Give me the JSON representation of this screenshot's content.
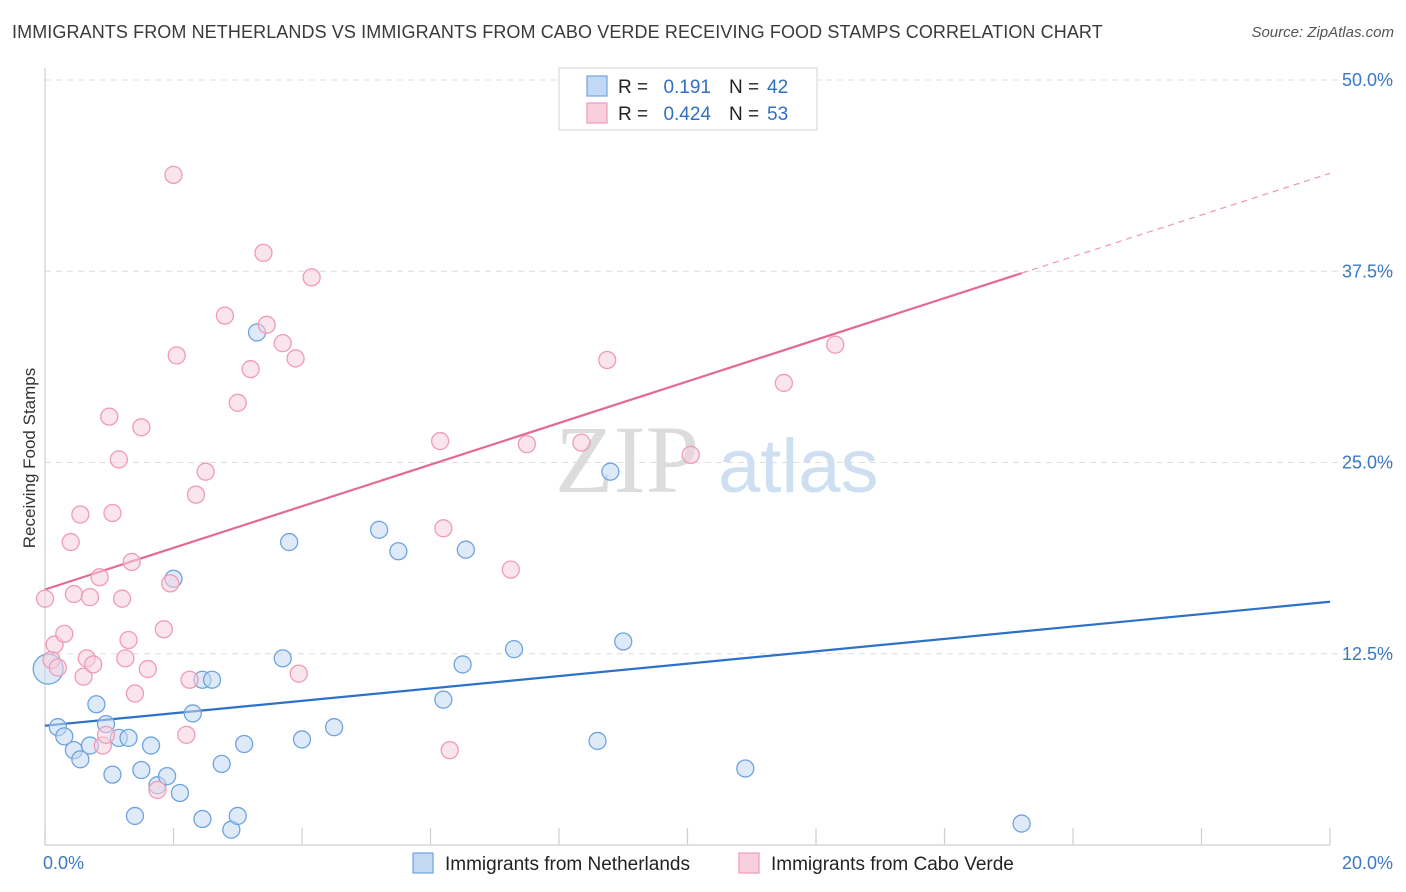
{
  "title": "IMMIGRANTS FROM NETHERLANDS VS IMMIGRANTS FROM CABO VERDE RECEIVING FOOD STAMPS CORRELATION CHART",
  "source": "Source: ZipAtlas.com",
  "watermark": {
    "zip": "ZIP",
    "atlas": "atlas"
  },
  "chart_data": {
    "type": "scatter",
    "title": "IMMIGRANTS FROM NETHERLANDS VS IMMIGRANTS FROM CABO VERDE RECEIVING FOOD STAMPS CORRELATION CHART",
    "xlabel": "",
    "ylabel": "Receiving Food Stamps",
    "xlim": [
      0,
      20
    ],
    "ylim": [
      0,
      50
    ],
    "x_tick_labels": [
      "0.0%",
      "20.0%"
    ],
    "y_ticks": [
      12.5,
      25.0,
      37.5,
      50.0
    ],
    "y_tick_labels": [
      "12.5%",
      "25.0%",
      "37.5%",
      "50.0%"
    ],
    "grid": true,
    "legend_placement": "top-center",
    "legend": {
      "r_label": "R =",
      "n_label": "N =",
      "entries": [
        {
          "r": "0.191",
          "n": "42"
        },
        {
          "r": "0.424",
          "n": "53"
        }
      ]
    },
    "series": [
      {
        "name": "Immigrants from Netherlands",
        "color": "#6fa3e0",
        "fill": "#c3d8f3",
        "trend_color": "#2d72c9",
        "trend": {
          "x0": 0,
          "y0": 7.8,
          "x1": 20,
          "y1": 15.9,
          "solid_until": 20
        },
        "points": [
          [
            0.05,
            11.5
          ],
          [
            0.2,
            7.7
          ],
          [
            0.3,
            7.1
          ],
          [
            0.45,
            6.2
          ],
          [
            0.55,
            5.6
          ],
          [
            0.7,
            6.5
          ],
          [
            0.8,
            9.2
          ],
          [
            0.95,
            7.9
          ],
          [
            1.05,
            4.6
          ],
          [
            1.15,
            7.0
          ],
          [
            1.3,
            7.0
          ],
          [
            1.5,
            4.9
          ],
          [
            1.65,
            6.5
          ],
          [
            1.75,
            3.9
          ],
          [
            1.9,
            4.5
          ],
          [
            2.0,
            17.4
          ],
          [
            2.1,
            3.4
          ],
          [
            2.3,
            8.6
          ],
          [
            2.45,
            10.8
          ],
          [
            2.6,
            10.8
          ],
          [
            2.75,
            5.3
          ],
          [
            2.9,
            1.0
          ],
          [
            3.0,
            1.9
          ],
          [
            3.1,
            6.6
          ],
          [
            3.3,
            33.5
          ],
          [
            3.7,
            12.2
          ],
          [
            3.8,
            19.8
          ],
          [
            4.0,
            6.9
          ],
          [
            4.5,
            7.7
          ],
          [
            5.2,
            20.6
          ],
          [
            5.5,
            19.2
          ],
          [
            6.2,
            9.5
          ],
          [
            6.5,
            11.8
          ],
          [
            6.55,
            19.3
          ],
          [
            7.3,
            12.8
          ],
          [
            8.6,
            6.8
          ],
          [
            8.8,
            24.4
          ],
          [
            9.0,
            13.3
          ],
          [
            10.9,
            5.0
          ],
          [
            15.2,
            1.4
          ],
          [
            1.4,
            1.9
          ],
          [
            2.45,
            1.7
          ]
        ]
      },
      {
        "name": "Immigrants from Cabo Verde",
        "color": "#f09bb5",
        "fill": "#f8cfdc",
        "trend_color": "#e36a93",
        "trend": {
          "x0": 0,
          "y0": 16.7,
          "x1": 20,
          "y1": 43.9,
          "solid_until": 15.2
        },
        "points": [
          [
            0.0,
            16.1
          ],
          [
            0.1,
            12.1
          ],
          [
            0.15,
            13.1
          ],
          [
            0.2,
            11.6
          ],
          [
            0.3,
            13.8
          ],
          [
            0.4,
            19.8
          ],
          [
            0.45,
            16.4
          ],
          [
            0.55,
            21.6
          ],
          [
            0.6,
            11.0
          ],
          [
            0.65,
            12.2
          ],
          [
            0.7,
            16.2
          ],
          [
            0.75,
            11.8
          ],
          [
            0.85,
            17.5
          ],
          [
            0.9,
            6.5
          ],
          [
            0.95,
            7.2
          ],
          [
            1.0,
            28.0
          ],
          [
            1.05,
            21.7
          ],
          [
            1.15,
            25.2
          ],
          [
            1.2,
            16.1
          ],
          [
            1.25,
            12.2
          ],
          [
            1.3,
            13.4
          ],
          [
            1.35,
            18.5
          ],
          [
            1.4,
            9.9
          ],
          [
            1.5,
            27.3
          ],
          [
            1.6,
            11.5
          ],
          [
            1.75,
            3.6
          ],
          [
            1.85,
            14.1
          ],
          [
            1.95,
            17.1
          ],
          [
            2.0,
            43.8
          ],
          [
            2.05,
            32.0
          ],
          [
            2.2,
            7.2
          ],
          [
            2.25,
            10.8
          ],
          [
            2.35,
            22.9
          ],
          [
            2.5,
            24.4
          ],
          [
            2.8,
            34.6
          ],
          [
            3.0,
            28.9
          ],
          [
            3.2,
            31.1
          ],
          [
            3.4,
            38.7
          ],
          [
            3.45,
            34.0
          ],
          [
            3.7,
            32.8
          ],
          [
            3.9,
            31.8
          ],
          [
            3.95,
            11.2
          ],
          [
            4.15,
            37.1
          ],
          [
            6.15,
            26.4
          ],
          [
            6.2,
            20.7
          ],
          [
            6.3,
            6.2
          ],
          [
            7.25,
            18.0
          ],
          [
            7.5,
            26.2
          ],
          [
            8.35,
            26.3
          ],
          [
            8.75,
            31.7
          ],
          [
            10.05,
            25.5
          ],
          [
            11.5,
            30.2
          ],
          [
            12.3,
            32.7
          ]
        ]
      }
    ]
  }
}
